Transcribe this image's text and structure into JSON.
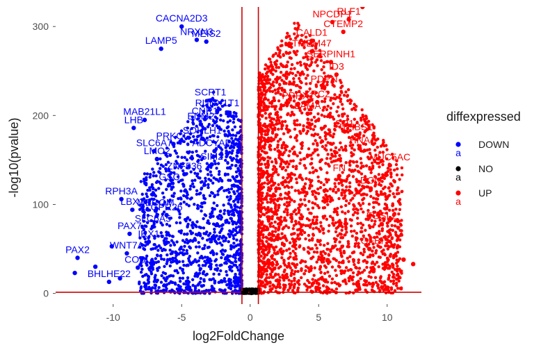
{
  "chart_data": {
    "type": "scatter",
    "title": "",
    "xlabel": "log2FoldChange",
    "ylabel": "-log10(pvalue)",
    "xlim": [
      -14.2,
      12.5
    ],
    "ylim": [
      -12,
      322
    ],
    "x_ticks": [
      -10,
      -5,
      0,
      5,
      10
    ],
    "y_ticks": [
      0,
      100,
      200,
      300
    ],
    "grid": false,
    "vlines": [
      -0.6,
      0.6
    ],
    "hline": 1.3,
    "threshold_color": "#cc0000",
    "legend": {
      "title": "diffexpressed",
      "position": "right",
      "entries": [
        {
          "name": "DOWN",
          "color": "#0000ff",
          "key_text": "a"
        },
        {
          "name": "NO",
          "color": "#000000",
          "key_text": "a"
        },
        {
          "name": "UP",
          "color": "#ff0000",
          "key_text": "a"
        }
      ]
    },
    "series": [
      {
        "name": "DOWN",
        "color": "#0000ff",
        "points": [
          {
            "x": -5.0,
            "y": 300,
            "label": "CACNA2D3"
          },
          {
            "x": -3.2,
            "y": 283,
            "label": "MEIS2"
          },
          {
            "x": -3.9,
            "y": 285,
            "label": "NRXN3"
          },
          {
            "x": -6.5,
            "y": 275,
            "label": "LAMP5"
          },
          {
            "x": -2.9,
            "y": 217,
            "label": "SCRT1"
          },
          {
            "x": -2.4,
            "y": 205,
            "label": "RUNX1T1"
          },
          {
            "x": -3.3,
            "y": 196,
            "label": "CNR1"
          },
          {
            "x": -3.6,
            "y": 190,
            "label": "ENM2"
          },
          {
            "x": -7.7,
            "y": 195,
            "label": "MAB21L1"
          },
          {
            "x": -8.5,
            "y": 186,
            "label": "LHB"
          },
          {
            "x": -3.5,
            "y": 174,
            "label": "SOHLH1"
          },
          {
            "x": -5.6,
            "y": 168,
            "label": "PRKCG"
          },
          {
            "x": -2.6,
            "y": 160,
            "label": "ADCYAP1"
          },
          {
            "x": -7.0,
            "y": 160,
            "label": "SLC6A7"
          },
          {
            "x": -6.8,
            "y": 151,
            "label": "LMO2"
          },
          {
            "x": -2.8,
            "y": 145,
            "label": "SIM2"
          },
          {
            "x": -4.8,
            "y": 134,
            "label": "ZNF536"
          },
          {
            "x": -5.9,
            "y": 122,
            "label": "GSC"
          },
          {
            "x": -9.4,
            "y": 106,
            "label": "RPH3A"
          },
          {
            "x": -8.6,
            "y": 94,
            "label": "LBX1"
          },
          {
            "x": -6.9,
            "y": 93,
            "label": "MECOM"
          },
          {
            "x": -6.1,
            "y": 88,
            "label": "GPR26"
          },
          {
            "x": -7.1,
            "y": 75,
            "label": "SLC6A5"
          },
          {
            "x": -8.8,
            "y": 67,
            "label": "PAX7"
          },
          {
            "x": -7.4,
            "y": 58,
            "label": "IRX1"
          },
          {
            "x": -9.0,
            "y": 45,
            "label": "WNT7A"
          },
          {
            "x": -12.6,
            "y": 40,
            "label": "PAX2"
          },
          {
            "x": -8.2,
            "y": 29,
            "label": "COBL"
          },
          {
            "x": -10.3,
            "y": 13,
            "label": "BHLHE22"
          },
          {
            "x": -9.5,
            "y": 17,
            "label": ""
          },
          {
            "x": -10.1,
            "y": 53,
            "label": ""
          },
          {
            "x": -11.3,
            "y": 30,
            "label": ""
          },
          {
            "x": -12.8,
            "y": 23,
            "label": ""
          }
        ]
      },
      {
        "name": "NO",
        "color": "#000000",
        "points": [
          {
            "x": -0.3,
            "y": 1.5,
            "label": ""
          },
          {
            "x": 0.1,
            "y": 0.5,
            "label": ""
          },
          {
            "x": 0.4,
            "y": 2.0,
            "label": ""
          },
          {
            "x": -0.5,
            "y": 0.8,
            "label": ""
          },
          {
            "x": 0.2,
            "y": 3.5,
            "label": ""
          }
        ]
      },
      {
        "name": "UP",
        "color": "#ff0000",
        "points": [
          {
            "x": 8.2,
            "y": 322,
            "label": ""
          },
          {
            "x": 6.0,
            "y": 305,
            "label": "NPCDP1"
          },
          {
            "x": 7.2,
            "y": 308,
            "label": "RLF1"
          },
          {
            "x": 6.8,
            "y": 294,
            "label": "CTEMP2"
          },
          {
            "x": 4.5,
            "y": 284,
            "label": "CALD1"
          },
          {
            "x": 4.5,
            "y": 272,
            "label": "TMEM47"
          },
          {
            "x": 5.9,
            "y": 260,
            "label": "SERPINH1"
          },
          {
            "x": 6.3,
            "y": 246,
            "label": "ID3"
          },
          {
            "x": 5.4,
            "y": 232,
            "label": "PDPN"
          },
          {
            "x": 3.5,
            "y": 213,
            "label": "PRRX1"
          },
          {
            "x": 4.9,
            "y": 215,
            "label": "KRC2"
          },
          {
            "x": 4.2,
            "y": 202,
            "label": "LAMA"
          },
          {
            "x": 7.8,
            "y": 178,
            "label": "THBS1"
          },
          {
            "x": 6.9,
            "y": 182,
            "label": "SR1"
          },
          {
            "x": 8.0,
            "y": 163,
            "label": "HNA"
          },
          {
            "x": 10.2,
            "y": 144,
            "label": "MUC5AC"
          },
          {
            "x": 6.5,
            "y": 132,
            "label": "FN"
          },
          {
            "x": 8.8,
            "y": 118,
            "label": "DCN"
          },
          {
            "x": 9.6,
            "y": 78,
            "label": "FOSL2"
          },
          {
            "x": 8.7,
            "y": 50,
            "label": "LGFBI"
          },
          {
            "x": 11.2,
            "y": 38,
            "label": ""
          },
          {
            "x": 9.0,
            "y": 25,
            "label": ""
          },
          {
            "x": 11.9,
            "y": 33,
            "label": ""
          }
        ]
      }
    ]
  }
}
